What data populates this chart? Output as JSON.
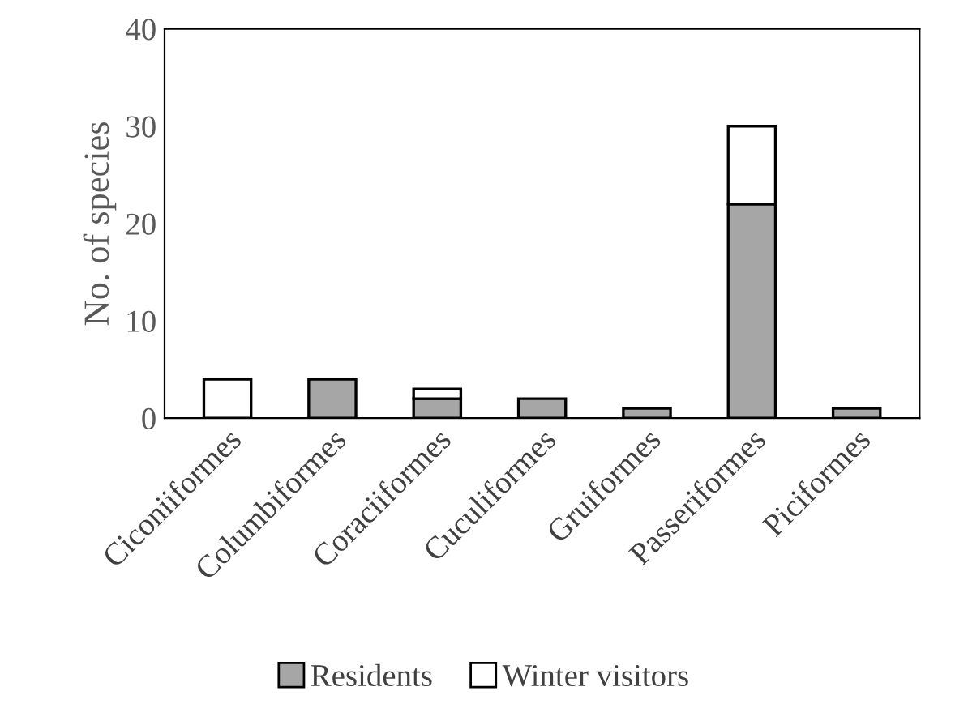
{
  "chart_data": {
    "type": "bar",
    "stacked": true,
    "ylabel": "No. of species",
    "categories": [
      "Ciconiiformes",
      "Columbiformes",
      "Coraciiformes",
      "Cuculiformes",
      "Gruiformes",
      "Passeriformes",
      "Piciformes"
    ],
    "series": [
      {
        "name": "Residents",
        "color": "#a6a6a6",
        "values": [
          0,
          4,
          2,
          2,
          1,
          22,
          1
        ]
      },
      {
        "name": "Winter visitors",
        "color": "#ffffff",
        "values": [
          4,
          0,
          1,
          0,
          0,
          8,
          0
        ]
      }
    ],
    "ylim": [
      0,
      40
    ],
    "yticks": [
      0,
      10,
      20,
      30,
      40
    ],
    "grid": false,
    "legend": "bottom"
  }
}
